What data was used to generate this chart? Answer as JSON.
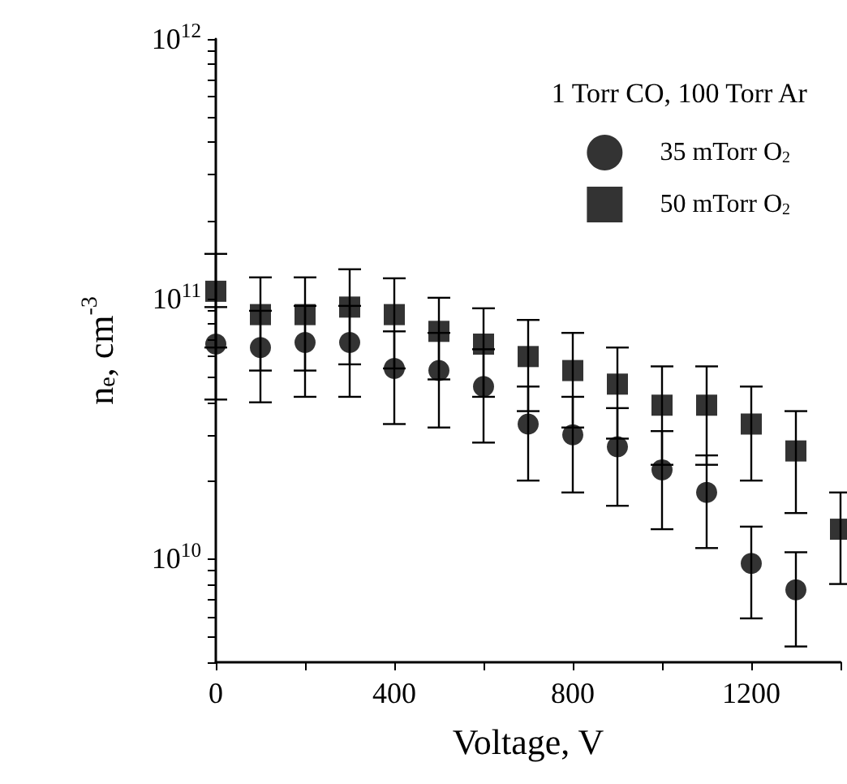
{
  "chart_data": {
    "type": "scatter",
    "xlabel": "Voltage, V",
    "ylabel": "n$_{e}$, cm$^{-3}$",
    "legend_title": "1 Torr CO, 100 Torr Ar",
    "log": "y",
    "xlim": [
      0,
      1400
    ],
    "ylim": [
      4000000000,
      1000000000000
    ],
    "xticks": [
      0,
      {
        "value": 200,
        "label": null
      },
      400,
      {
        "value": 600,
        "label": null
      },
      800,
      {
        "value": 1000,
        "label": null
      },
      1200,
      {
        "value": 1400,
        "label": null
      }
    ],
    "yticks": [
      {
        "value": 4000000000,
        "label": null
      },
      {
        "value": 5000000000,
        "label": null
      },
      {
        "value": 6000000000,
        "label": null
      },
      {
        "value": 7000000000,
        "label": null
      },
      {
        "value": 8000000000,
        "label": null
      },
      {
        "value": 9000000000,
        "label": null
      },
      {
        "value": 10000000000,
        "label": "10$^{10}$"
      },
      {
        "value": 20000000000,
        "label": null
      },
      {
        "value": 30000000000,
        "label": null
      },
      {
        "value": 40000000000,
        "label": null
      },
      {
        "value": 50000000000,
        "label": null
      },
      {
        "value": 60000000000,
        "label": null
      },
      {
        "value": 70000000000,
        "label": null
      },
      {
        "value": 80000000000,
        "label": null
      },
      {
        "value": 90000000000,
        "label": null
      },
      {
        "value": 100000000000,
        "label": "10$^{11}$"
      },
      {
        "value": 200000000000,
        "label": null
      },
      {
        "value": 300000000000,
        "label": null
      },
      {
        "value": 400000000000,
        "label": null
      },
      {
        "value": 500000000000,
        "label": null
      },
      {
        "value": 600000000000,
        "label": null
      },
      {
        "value": 700000000000,
        "label": null
      },
      {
        "value": 800000000000,
        "label": null
      },
      {
        "value": 900000000000,
        "label": null
      },
      {
        "value": 1000000000000,
        "label": "10$^{12}$"
      }
    ],
    "grid": false,
    "legend": "top right",
    "series": [
      {
        "name": "35 mTorr O$_{2}$",
        "color": "#000000",
        "marker": "circle",
        "x": [
          0,
          100,
          200,
          300,
          400,
          500,
          600,
          700,
          800,
          900,
          1000,
          1100,
          1200,
          1300
        ],
        "values": [
          67000000000,
          65000000000,
          68000000000,
          68000000000,
          54000000000,
          53000000000,
          46000000000,
          33000000000,
          30000000000,
          27000000000,
          22000000000,
          18000000000,
          9600000000,
          7600000000
        ],
        "errors": [
          26000000000,
          25000000000,
          26000000000,
          26000000000,
          21000000000,
          21000000000,
          18000000000,
          13000000000,
          12000000000,
          11000000000,
          9000000000,
          7000000000,
          3700000000,
          3000000000
        ]
      },
      {
        "name": "50 mTorr O$_{2}$",
        "color": "#000000",
        "marker": "square",
        "x": [
          0,
          100,
          200,
          300,
          400,
          500,
          600,
          700,
          800,
          900,
          1000,
          1100,
          1200,
          1300,
          1400
        ],
        "values": [
          107000000000,
          87000000000,
          87000000000,
          93000000000,
          87000000000,
          75000000000,
          67000000000,
          60000000000,
          53000000000,
          47000000000,
          39000000000,
          39000000000,
          33000000000,
          26000000000,
          13000000000
        ],
        "errors": [
          42000000000,
          34000000000,
          34000000000,
          37000000000,
          33000000000,
          26000000000,
          25000000000,
          23000000000,
          21000000000,
          18000000000,
          16000000000,
          16000000000,
          13000000000,
          11000000000,
          5000000000
        ]
      }
    ]
  }
}
